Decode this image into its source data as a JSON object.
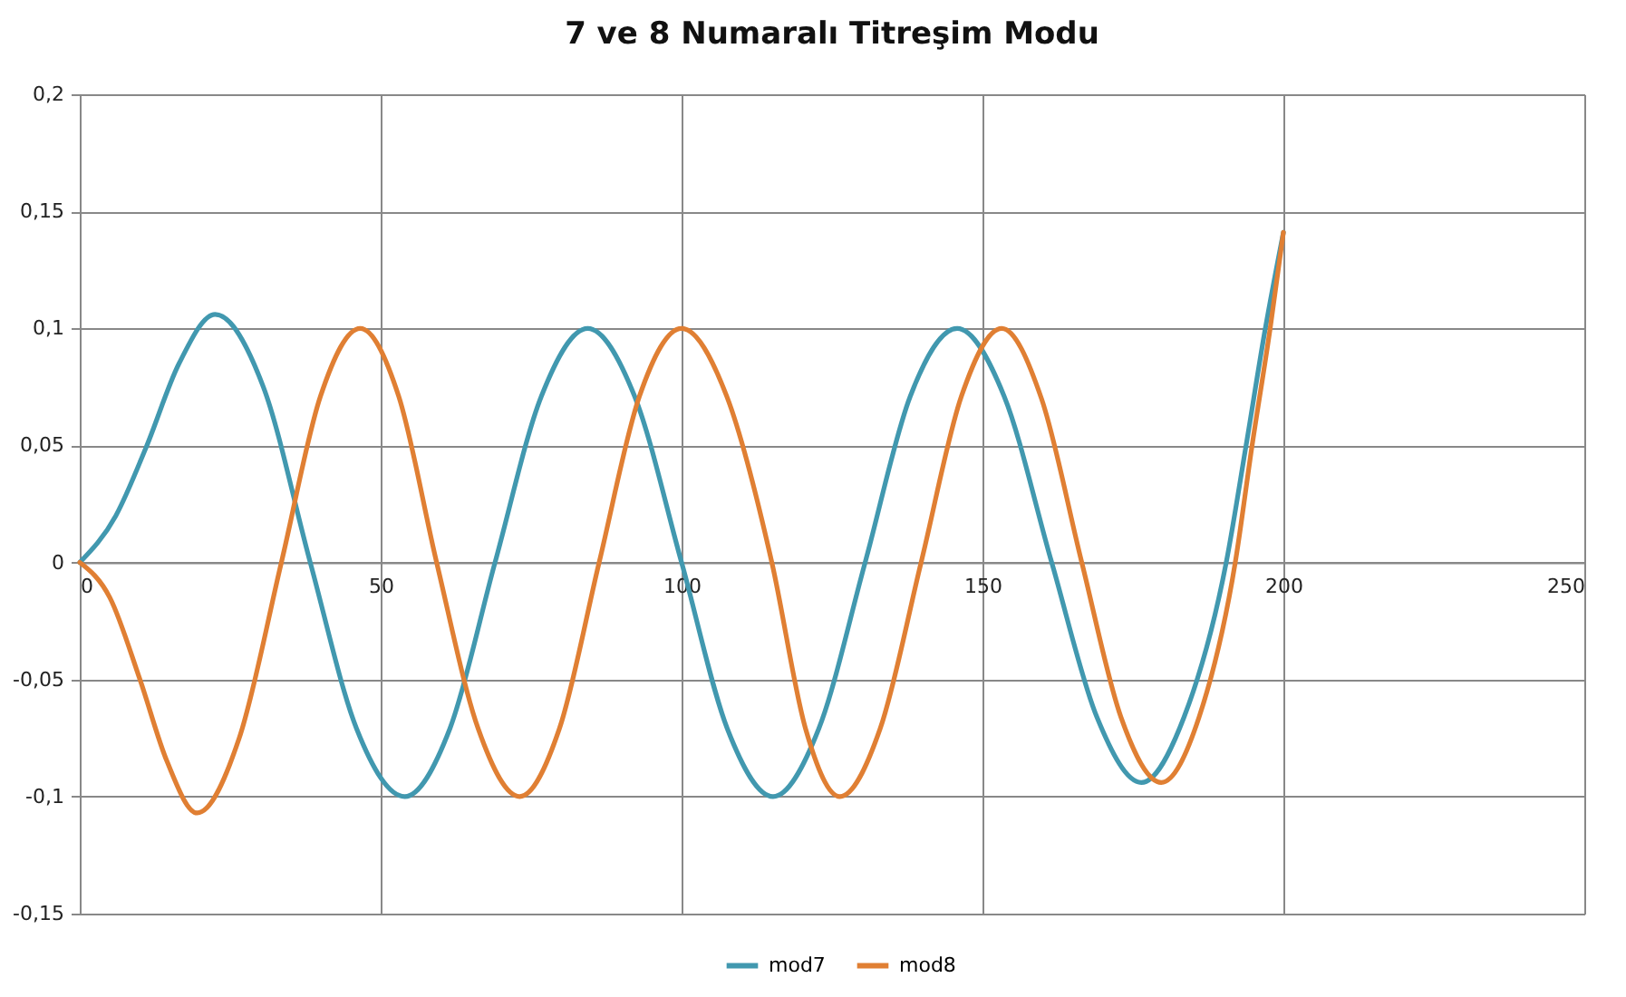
{
  "chart_data": {
    "type": "line",
    "title": "7 ve 8 Numaralı Titreşim Modu",
    "xlim": [
      0,
      250
    ],
    "xticks": [
      0,
      50,
      100,
      150,
      200,
      250
    ],
    "ylim": [
      -0.15,
      0.2
    ],
    "yticks": [
      {
        "value": -0.15,
        "label": "-0,15"
      },
      {
        "value": -0.1,
        "label": "-0,1"
      },
      {
        "value": -0.05,
        "label": "-0,05"
      },
      0,
      {
        "value": 0.05,
        "label": "0,05"
      },
      {
        "value": 0.1,
        "label": "0,1"
      },
      {
        "value": 0.15,
        "label": "0,15"
      },
      {
        "value": 0.2,
        "label": "0,2"
      }
    ],
    "grid": true,
    "legend": "bottom",
    "marker": "none",
    "line_style": "solid",
    "series": [
      {
        "name": "mod7",
        "color": "#4198af",
        "x": [
          0,
          6,
          11,
          16.5,
          22.5,
          30.5,
          38.3,
          46,
          54,
          61.5,
          69,
          76.7,
          84.4,
          92.2,
          100,
          107.6,
          115.2,
          122.8,
          130.5,
          138,
          145.8,
          153.6,
          161.5,
          169,
          176.4,
          183.5,
          190.5,
          193.8,
          197,
          200
        ],
        "values": [
          0,
          0.02,
          0.049,
          0.085,
          0.106,
          0.075,
          0,
          -0.071,
          -0.1,
          -0.071,
          0,
          0.071,
          0.1,
          0.071,
          0,
          -0.071,
          -0.1,
          -0.071,
          0,
          0.071,
          0.1,
          0.071,
          0,
          -0.066,
          -0.094,
          -0.066,
          0,
          0.05,
          0.1,
          0.141
        ]
      },
      {
        "name": "mod8",
        "color": "#e07f33",
        "x": [
          0,
          5,
          10,
          14.5,
          19.5,
          26.5,
          33.5,
          40,
          46.6,
          53,
          59.3,
          66.2,
          73.1,
          79.7,
          86.3,
          93,
          100,
          107.5,
          115,
          120.6,
          126.3,
          133,
          139.8,
          146.5,
          153.2,
          159.8,
          166.5,
          173,
          179.7,
          186,
          192,
          194.8,
          197.8,
          200
        ],
        "values": [
          0,
          -0.015,
          -0.05,
          -0.085,
          -0.107,
          -0.075,
          0,
          0.071,
          0.1,
          0.071,
          0,
          -0.071,
          -0.1,
          -0.071,
          0,
          0.071,
          0.1,
          0.071,
          0,
          -0.071,
          -0.1,
          -0.071,
          0,
          0.071,
          0.1,
          0.07,
          0,
          -0.066,
          -0.094,
          -0.066,
          0,
          0.05,
          0.1,
          0.141
        ]
      }
    ]
  }
}
